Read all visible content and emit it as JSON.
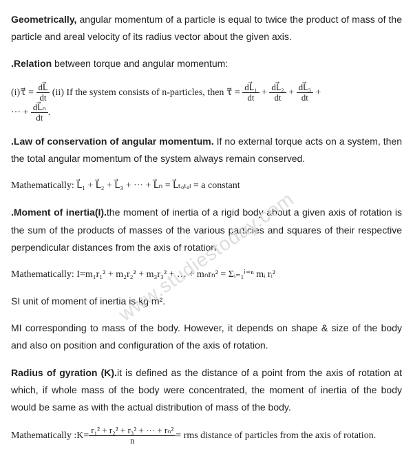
{
  "watermark": "www.studiestoday.com",
  "p1": {
    "lead": "Geometrically,",
    "rest": " angular  momentum of a particle is equal to twice the product of mass of the particle and areal velocity of its radius vector about the given axis."
  },
  "p2": {
    "lead": ".Relation",
    "rest": " between torque and angular momentum:"
  },
  "eq1": {
    "i_label": "(i)",
    "tau": "τ⃗ = ",
    "num1": "dL⃗",
    "den1": "dt",
    "ii_label": "     (ii) If the system consists of n-particles, then ",
    "tau2": "τ⃗ = ",
    "numA": "dL⃗₁",
    "denA": "dt",
    "plus": " + ",
    "numB": "dL⃗₂",
    "denB": "dt",
    "numC": "dL⃗₃",
    "denC": "dt",
    "tail": " + ",
    "line2_pre": "··· + ",
    "numN": "dL⃗ₙ",
    "denN": "dt",
    "line2_post": "."
  },
  "p3": {
    "lead": ".Law of conservation of angular momentum.",
    "rest": " If no external torque acts on a system, then the total angular momentum of the system always remain conserved."
  },
  "p4": {
    "pre": "Mathematically: ",
    "eq": "L⃗₁ + L⃗₂ + L⃗₃ + ··· + L⃗ₙ = L⃗ₜₒₜₐₗ = a constant"
  },
  "p5": {
    "lead": ".Moment of inertia(I).",
    "rest": "the moment of inertia of a rigid body about a given axis of rotation is the sum of the products of masses of the various particles and squares of their respective perpendicular distances from the axis of rotation."
  },
  "p6": {
    "pre": "Mathematically: I=",
    "eq": "m₁r₁² + m₂r₂² + m₃r₃² + … + mₙrₙ² = Σᵢ₌₁ⁱ⁼ⁿ mᵢ rᵢ²"
  },
  "p7": "SI unit of moment of inertia is kg m².",
  "p8": "MI corresponding to mass of the body. However, it depends on shape & size of the body and also on position and configuration of the axis of rotation.",
  "p9": {
    "lead": "Radius of gyration (K).",
    "rest": "it is defined as the distance of a point from the axis of rotation at which, if whole mass of the body were concentrated, the moment of inertia of the body would be same as with the actual distribution of mass of the body."
  },
  "p10": {
    "pre": "Mathematically :K=",
    "num": "r₁² + r₂² + r₃² + ··· + rₙ²",
    "den": "n",
    "post": "= rms distance of particles from the axis of rotation."
  }
}
